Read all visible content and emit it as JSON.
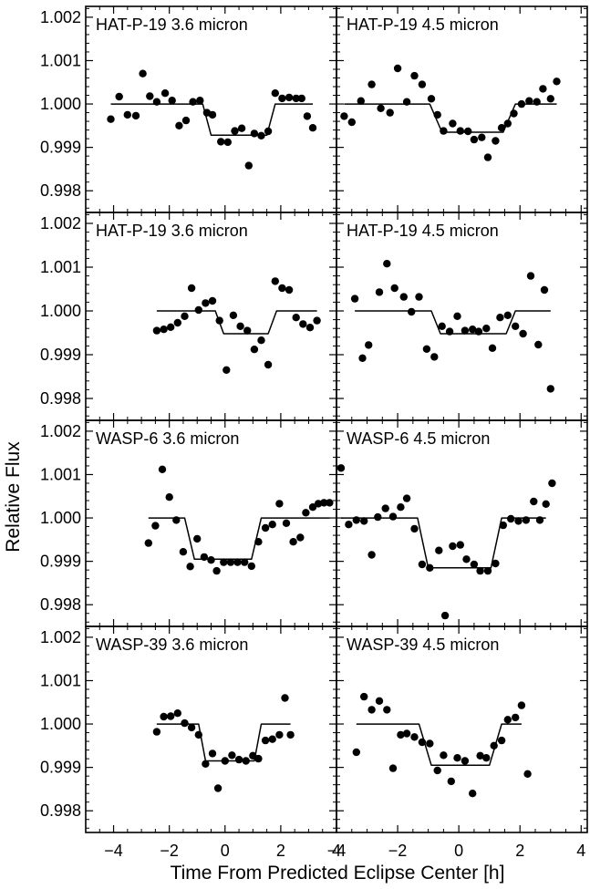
{
  "figure": {
    "ylabel": "Relative Flux",
    "xlabel": "Time From Predicted Eclipse Center [h]"
  },
  "chart_data": [
    {
      "type": "scatter",
      "title": "HAT-P-19 3.6 micron",
      "xlim": [
        -5,
        4
      ],
      "ylim": [
        0.9975,
        1.00225
      ],
      "xticks": [
        -4,
        -2,
        0,
        2,
        4
      ],
      "yticks": [
        0.998,
        0.999,
        1.0,
        1.001,
        1.002
      ],
      "points": [
        [
          -4.1,
          0.99965
        ],
        [
          -3.8,
          1.00017
        ],
        [
          -3.5,
          0.99975
        ],
        [
          -3.2,
          0.99973
        ],
        [
          -2.95,
          1.0007
        ],
        [
          -2.7,
          1.00018
        ],
        [
          -2.45,
          1.00005
        ],
        [
          -2.15,
          1.00025
        ],
        [
          -1.9,
          1.00008
        ],
        [
          -1.65,
          0.9995
        ],
        [
          -1.4,
          0.99962
        ],
        [
          -1.15,
          1.00005
        ],
        [
          -0.9,
          1.00008
        ],
        [
          -0.65,
          0.9998
        ],
        [
          -0.45,
          0.99975
        ],
        [
          -0.15,
          0.99913
        ],
        [
          0.1,
          0.99912
        ],
        [
          0.35,
          0.99938
        ],
        [
          0.6,
          0.99944
        ],
        [
          0.85,
          0.99858
        ],
        [
          1.05,
          0.99932
        ],
        [
          1.3,
          0.99927
        ],
        [
          1.55,
          0.99937
        ],
        [
          1.8,
          1.00025
        ],
        [
          2.05,
          1.00013
        ],
        [
          2.3,
          1.00015
        ],
        [
          2.55,
          1.00013
        ],
        [
          2.75,
          1.00013
        ],
        [
          2.95,
          0.99972
        ],
        [
          3.15,
          0.99945
        ]
      ],
      "model": [
        [
          -4.1,
          1.0
        ],
        [
          -0.8,
          1.0
        ],
        [
          -0.5,
          0.99928
        ],
        [
          1.5,
          0.99928
        ],
        [
          1.8,
          1.0
        ],
        [
          3.15,
          1.0
        ]
      ]
    },
    {
      "type": "scatter",
      "title": "HAT-P-19 4.5 micron",
      "xlim": [
        -4,
        4.2
      ],
      "ylim": [
        0.9975,
        1.00225
      ],
      "xticks": [
        -4,
        -2,
        0,
        2,
        4
      ],
      "yticks": [
        0.998,
        0.999,
        1.0,
        1.001,
        1.002
      ],
      "points": [
        [
          -3.75,
          0.99972
        ],
        [
          -3.5,
          0.99958
        ],
        [
          -3.2,
          1.00007
        ],
        [
          -2.85,
          1.00045
        ],
        [
          -2.55,
          0.9999
        ],
        [
          -2.25,
          0.9998
        ],
        [
          -2.0,
          1.00082
        ],
        [
          -1.7,
          1.00005
        ],
        [
          -1.45,
          1.00065
        ],
        [
          -1.2,
          1.00045
        ],
        [
          -0.9,
          1.00012
        ],
        [
          -0.7,
          0.99975
        ],
        [
          -0.5,
          0.99938
        ],
        [
          -0.2,
          0.99955
        ],
        [
          0.05,
          0.99938
        ],
        [
          0.3,
          0.99937
        ],
        [
          0.5,
          0.99918
        ],
        [
          0.75,
          0.99923
        ],
        [
          0.95,
          0.99877
        ],
        [
          1.2,
          0.99915
        ],
        [
          1.4,
          0.99945
        ],
        [
          1.6,
          0.99955
        ],
        [
          1.8,
          0.99978
        ],
        [
          2.05,
          1.0
        ],
        [
          2.3,
          1.00007
        ],
        [
          2.55,
          1.00005
        ],
        [
          2.75,
          1.00035
        ],
        [
          3.0,
          1.00012
        ],
        [
          3.2,
          1.00052
        ]
      ],
      "model": [
        [
          -3.75,
          1.0
        ],
        [
          -0.95,
          1.0
        ],
        [
          -0.55,
          0.99935
        ],
        [
          1.45,
          0.99935
        ],
        [
          1.85,
          1.0
        ],
        [
          3.2,
          1.0
        ]
      ]
    },
    {
      "type": "scatter",
      "title": "HAT-P-19 3.6 micron",
      "xlim": [
        -5,
        4
      ],
      "ylim": [
        0.9975,
        1.00225
      ],
      "xticks": [
        -4,
        -2,
        0,
        2,
        4
      ],
      "yticks": [
        0.998,
        0.999,
        1.0,
        1.001,
        1.002
      ],
      "points": [
        [
          -2.45,
          0.99955
        ],
        [
          -2.2,
          0.99958
        ],
        [
          -1.95,
          0.99963
        ],
        [
          -1.7,
          0.99973
        ],
        [
          -1.45,
          0.99988
        ],
        [
          -1.2,
          1.00052
        ],
        [
          -0.95,
          1.00002
        ],
        [
          -0.7,
          1.00018
        ],
        [
          -0.45,
          1.00023
        ],
        [
          -0.2,
          0.99978
        ],
        [
          0.05,
          0.99865
        ],
        [
          0.3,
          0.9999
        ],
        [
          0.55,
          0.99965
        ],
        [
          0.8,
          0.99955
        ],
        [
          1.05,
          0.99912
        ],
        [
          1.3,
          0.99933
        ],
        [
          1.55,
          0.99877
        ],
        [
          1.8,
          1.00068
        ],
        [
          2.05,
          1.00052
        ],
        [
          2.3,
          1.00048
        ],
        [
          2.55,
          0.99985
        ],
        [
          2.8,
          0.9997
        ],
        [
          3.05,
          0.99962
        ],
        [
          3.3,
          0.99978
        ]
      ],
      "model": [
        [
          -2.45,
          1.0
        ],
        [
          -0.35,
          1.0
        ],
        [
          -0.05,
          0.99948
        ],
        [
          1.55,
          0.99948
        ],
        [
          1.85,
          1.0
        ],
        [
          3.3,
          1.0
        ]
      ]
    },
    {
      "type": "scatter",
      "title": "HAT-P-19 4.5 micron",
      "xlim": [
        -4,
        4.2
      ],
      "ylim": [
        0.9975,
        1.00225
      ],
      "xticks": [
        -4,
        -2,
        0,
        2,
        4
      ],
      "yticks": [
        0.998,
        0.999,
        1.0,
        1.001,
        1.002
      ],
      "points": [
        [
          -3.4,
          1.00028
        ],
        [
          -3.15,
          0.99892
        ],
        [
          -2.95,
          0.99922
        ],
        [
          -2.6,
          1.00043
        ],
        [
          -2.35,
          1.00108
        ],
        [
          -2.1,
          1.00052
        ],
        [
          -1.8,
          1.00032
        ],
        [
          -1.55,
          0.99998
        ],
        [
          -1.3,
          1.00032
        ],
        [
          -1.05,
          0.99913
        ],
        [
          -0.8,
          0.99895
        ],
        [
          -0.55,
          0.99965
        ],
        [
          -0.3,
          0.99953
        ],
        [
          -0.05,
          0.99988
        ],
        [
          0.2,
          0.99955
        ],
        [
          0.45,
          0.99958
        ],
        [
          0.65,
          0.99953
        ],
        [
          0.9,
          0.9996
        ],
        [
          1.1,
          0.99915
        ],
        [
          1.35,
          0.99985
        ],
        [
          1.6,
          0.9999
        ],
        [
          1.85,
          0.99965
        ],
        [
          2.1,
          0.99948
        ],
        [
          2.35,
          1.0008
        ],
        [
          2.6,
          0.99923
        ],
        [
          2.8,
          1.00048
        ],
        [
          3.0,
          0.99822
        ]
      ],
      "model": [
        [
          -3.4,
          1.0
        ],
        [
          -0.9,
          1.0
        ],
        [
          -0.6,
          0.99948
        ],
        [
          1.55,
          0.99948
        ],
        [
          1.85,
          1.0
        ],
        [
          3.0,
          1.0
        ]
      ]
    },
    {
      "type": "scatter",
      "title": "WASP-6 3.6 micron",
      "xlim": [
        -5,
        4
      ],
      "ylim": [
        0.9975,
        1.00225
      ],
      "xticks": [
        -4,
        -2,
        0,
        2,
        4
      ],
      "yticks": [
        0.998,
        0.999,
        1.0,
        1.001,
        1.002
      ],
      "points": [
        [
          -2.75,
          0.99942
        ],
        [
          -2.5,
          0.99982
        ],
        [
          -2.25,
          1.00112
        ],
        [
          -2.0,
          1.00048
        ],
        [
          -1.75,
          0.99995
        ],
        [
          -1.5,
          0.99922
        ],
        [
          -1.25,
          0.99888
        ],
        [
          -1.0,
          0.99952
        ],
        [
          -0.75,
          0.9991
        ],
        [
          -0.5,
          0.99903
        ],
        [
          -0.3,
          0.99878
        ],
        [
          -0.05,
          0.99898
        ],
        [
          0.2,
          0.99898
        ],
        [
          0.45,
          0.99898
        ],
        [
          0.7,
          0.99898
        ],
        [
          0.95,
          0.99889
        ],
        [
          1.2,
          0.99945
        ],
        [
          1.45,
          0.99977
        ],
        [
          1.7,
          0.99985
        ],
        [
          1.95,
          1.00033
        ],
        [
          2.2,
          0.99988
        ],
        [
          2.45,
          0.99945
        ],
        [
          2.7,
          0.99955
        ],
        [
          2.9,
          1.00012
        ],
        [
          3.15,
          1.00025
        ],
        [
          3.35,
          1.00033
        ],
        [
          3.55,
          1.00035
        ],
        [
          3.75,
          1.00035
        ]
      ],
      "model": [
        [
          -2.75,
          1.0
        ],
        [
          -1.45,
          1.0
        ],
        [
          -1.1,
          0.99905
        ],
        [
          0.95,
          0.99905
        ],
        [
          1.3,
          1.0
        ],
        [
          3.75,
          1.0
        ]
      ]
    },
    {
      "type": "scatter",
      "title": "WASP-6 4.5 micron",
      "xlim": [
        -4,
        4.2
      ],
      "ylim": [
        0.9975,
        1.00225
      ],
      "xticks": [
        -4,
        -2,
        0,
        2,
        4
      ],
      "yticks": [
        0.998,
        0.999,
        1.0,
        1.001,
        1.002
      ],
      "points": [
        [
          -3.85,
          1.00115
        ],
        [
          -3.6,
          0.99985
        ],
        [
          -3.35,
          0.99995
        ],
        [
          -3.1,
          0.99993
        ],
        [
          -2.85,
          0.99915
        ],
        [
          -2.65,
          1.00002
        ],
        [
          -2.4,
          1.00022
        ],
        [
          -2.15,
          1.00003
        ],
        [
          -1.9,
          1.00025
        ],
        [
          -1.7,
          1.00045
        ],
        [
          -1.45,
          0.99975
        ],
        [
          -1.2,
          0.99893
        ],
        [
          -0.95,
          0.99885
        ],
        [
          -0.65,
          0.99925
        ],
        [
          -0.45,
          0.99775
        ],
        [
          -0.2,
          0.99935
        ],
        [
          0.05,
          0.99938
        ],
        [
          0.25,
          0.99905
        ],
        [
          0.5,
          0.99893
        ],
        [
          0.7,
          0.99878
        ],
        [
          0.95,
          0.99878
        ],
        [
          1.2,
          0.99895
        ],
        [
          1.45,
          0.99983
        ],
        [
          1.7,
          0.99998
        ],
        [
          1.95,
          0.99993
        ],
        [
          2.2,
          0.99995
        ],
        [
          2.45,
          1.00038
        ],
        [
          2.65,
          0.99995
        ],
        [
          2.85,
          1.00032
        ],
        [
          3.05,
          1.0008
        ]
      ],
      "model": [
        [
          -3.85,
          1.0
        ],
        [
          -1.35,
          1.0
        ],
        [
          -1.0,
          0.99885
        ],
        [
          1.05,
          0.99885
        ],
        [
          1.4,
          1.0
        ],
        [
          2.85,
          1.0
        ]
      ]
    },
    {
      "type": "scatter",
      "title": "WASP-39 3.6 micron",
      "xlim": [
        -5,
        4
      ],
      "ylim": [
        0.9975,
        1.00225
      ],
      "xticks": [
        -4,
        -2,
        0,
        2,
        4
      ],
      "yticks": [
        0.998,
        0.999,
        1.0,
        1.001,
        1.002
      ],
      "points": [
        [
          -2.45,
          0.99982
        ],
        [
          -2.2,
          1.00017
        ],
        [
          -1.95,
          1.00018
        ],
        [
          -1.7,
          1.00025
        ],
        [
          -1.45,
          1.00002
        ],
        [
          -1.2,
          0.99992
        ],
        [
          -0.95,
          0.99975
        ],
        [
          -0.7,
          0.99908
        ],
        [
          -0.45,
          0.99932
        ],
        [
          -0.25,
          0.99852
        ],
        [
          0.0,
          0.99915
        ],
        [
          0.25,
          0.99928
        ],
        [
          0.5,
          0.99918
        ],
        [
          0.75,
          0.99915
        ],
        [
          1.0,
          0.99927
        ],
        [
          1.2,
          0.9992
        ],
        [
          1.45,
          0.99962
        ],
        [
          1.7,
          0.99965
        ],
        [
          1.95,
          0.99975
        ],
        [
          2.15,
          1.0006
        ],
        [
          2.35,
          0.99975
        ]
      ],
      "model": [
        [
          -2.45,
          1.0
        ],
        [
          -0.95,
          1.0
        ],
        [
          -0.7,
          0.99915
        ],
        [
          1.05,
          0.99915
        ],
        [
          1.3,
          1.0
        ],
        [
          2.35,
          1.0
        ]
      ]
    },
    {
      "type": "scatter",
      "title": "WASP-39 4.5 micron",
      "xlim": [
        -4,
        4.2
      ],
      "ylim": [
        0.9975,
        1.00225
      ],
      "xticks": [
        -4,
        -2,
        0,
        2,
        4
      ],
      "yticks": [
        0.998,
        0.999,
        1.0,
        1.001,
        1.002
      ],
      "points": [
        [
          -3.35,
          0.99935
        ],
        [
          -3.1,
          1.00063
        ],
        [
          -2.85,
          1.00033
        ],
        [
          -2.6,
          1.00053
        ],
        [
          -2.35,
          1.00033
        ],
        [
          -2.15,
          0.99898
        ],
        [
          -1.9,
          0.99975
        ],
        [
          -1.7,
          0.99978
        ],
        [
          -1.45,
          0.9997
        ],
        [
          -1.2,
          0.99958
        ],
        [
          -0.95,
          0.99955
        ],
        [
          -0.7,
          0.99893
        ],
        [
          -0.5,
          0.99928
        ],
        [
          -0.25,
          0.99868
        ],
        [
          -0.05,
          0.99922
        ],
        [
          0.2,
          0.99915
        ],
        [
          0.45,
          0.9984
        ],
        [
          0.7,
          0.99927
        ],
        [
          0.9,
          0.99922
        ],
        [
          1.15,
          0.9995
        ],
        [
          1.4,
          0.99962
        ],
        [
          1.6,
          1.0001
        ],
        [
          1.85,
          1.00015
        ],
        [
          2.05,
          1.00043
        ],
        [
          2.25,
          0.99885
        ]
      ],
      "model": [
        [
          -3.35,
          1.0
        ],
        [
          -1.3,
          1.0
        ],
        [
          -0.9,
          0.99905
        ],
        [
          1.0,
          0.99905
        ],
        [
          1.4,
          1.0
        ],
        [
          2.05,
          1.0
        ]
      ]
    }
  ]
}
